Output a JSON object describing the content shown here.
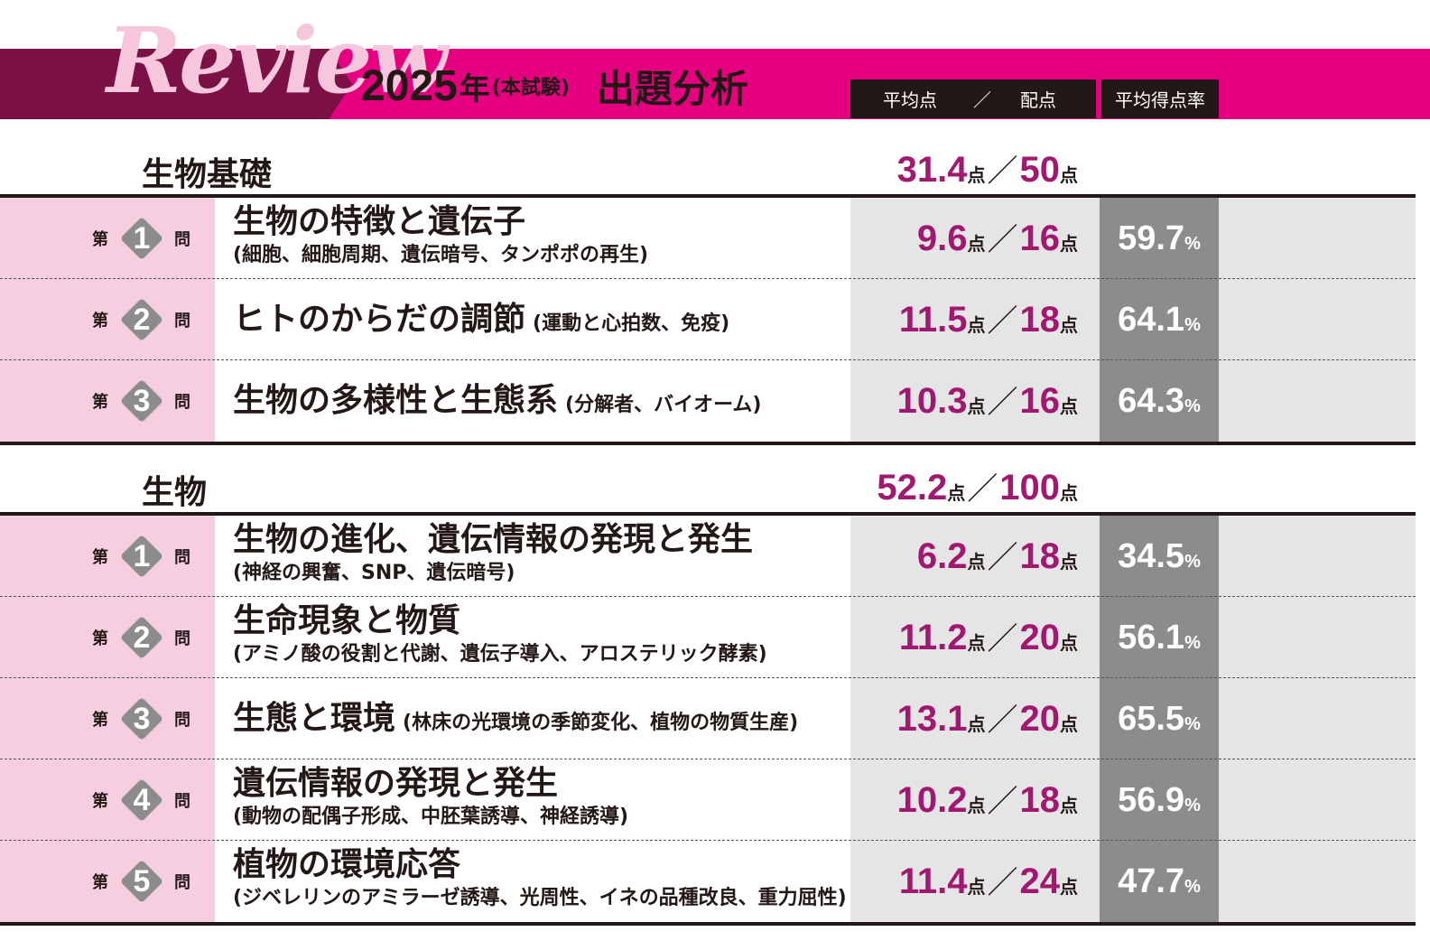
{
  "header": {
    "logo_text": "Review",
    "year": "2025",
    "year_suffix": "年",
    "exam_note": "(本試験)",
    "title": "出題分析",
    "col_avg": "平均点",
    "col_sep": "／",
    "col_max": "配点",
    "col_rate": "平均得点率"
  },
  "labels": {
    "dai": "第",
    "mon": "問",
    "pt": "点",
    "slash": "／",
    "pct": "%"
  },
  "sections": [
    {
      "title": "生物基礎",
      "avg": "31.4",
      "max": "50",
      "questions": [
        {
          "no": "1",
          "title": "生物の特徴と遺伝子",
          "sub": "(細胞、細胞周期、遺伝暗号、タンポポの再生)",
          "layout": "stack",
          "avg": "9.6",
          "max": "16",
          "rate": "59.7"
        },
        {
          "no": "2",
          "title": "ヒトのからだの調節",
          "sub": "(運動と心拍数、免疫)",
          "layout": "inline",
          "avg": "11.5",
          "max": "18",
          "rate": "64.1"
        },
        {
          "no": "3",
          "title": "生物の多様性と生態系",
          "sub": "(分解者、バイオーム)",
          "layout": "inline",
          "avg": "10.3",
          "max": "16",
          "rate": "64.3"
        }
      ]
    },
    {
      "title": "生物",
      "avg": "52.2",
      "max": "100",
      "questions": [
        {
          "no": "1",
          "title": "生物の進化、遺伝情報の発現と発生",
          "sub": "(神経の興奮、SNP、遺伝暗号)",
          "layout": "stack",
          "avg": "6.2",
          "max": "18",
          "rate": "34.5"
        },
        {
          "no": "2",
          "title": "生命現象と物質",
          "sub": "(アミノ酸の役割と代謝、遺伝子導入、アロステリック酵素)",
          "layout": "stack",
          "avg": "11.2",
          "max": "20",
          "rate": "56.1"
        },
        {
          "no": "3",
          "title": "生態と環境",
          "sub": "(林床の光環境の季節変化、植物の物質生産)",
          "layout": "inline",
          "avg": "13.1",
          "max": "20",
          "rate": "65.5"
        },
        {
          "no": "4",
          "title": "遺伝情報の発現と発生",
          "sub": "(動物の配偶子形成、中胚葉誘導、神経誘導)",
          "layout": "stack",
          "avg": "10.2",
          "max": "18",
          "rate": "56.9"
        },
        {
          "no": "5",
          "title": "植物の環境応答",
          "sub": "(ジベレリンのアミラーゼ誘導、光周性、イネの品種改良、重力屈性)",
          "layout": "stack",
          "avg": "11.4",
          "max": "24",
          "rate": "47.7"
        }
      ]
    }
  ],
  "colors": {
    "magenta": "#e4007f",
    "dark_plum": "#7b1145",
    "pink_cell": "#f5cfe0",
    "score_text": "#a0186f",
    "rate_cell": "#8c8c8c"
  }
}
